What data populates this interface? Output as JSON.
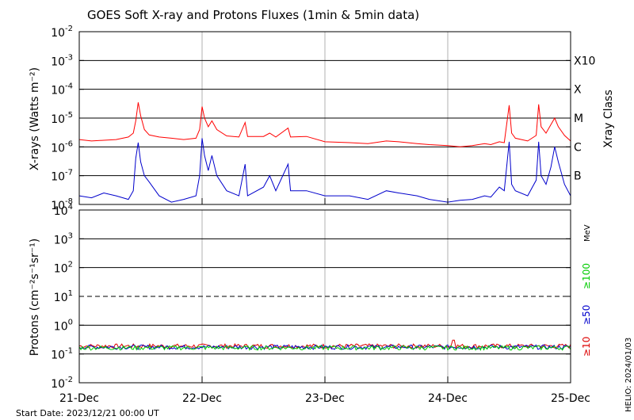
{
  "chart_data": {
    "title": "GOES Soft X-ray and Protons Fluxes   (1min & 5min data)",
    "x_axis": {
      "ticks": [
        "21-Dec",
        "22-Dec",
        "23-Dec",
        "24-Dec",
        "25-Dec"
      ],
      "range_days": [
        0,
        4
      ],
      "start_label": "Start Date: 2023/12/21 00:00 UT"
    },
    "side_label": "HELIO: 2024/01/03",
    "panels": [
      {
        "type": "line",
        "name": "xray",
        "ylabel": "X-rays (Watts m⁻²)",
        "y_scale": "log",
        "ylim": [
          1e-08,
          0.01
        ],
        "y_tick_exponents": [
          -2,
          -3,
          -4,
          -5,
          -6,
          -7,
          -8
        ],
        "right_axis_label": "Xray Class",
        "classes": [
          {
            "label": "X10",
            "flux": 0.001
          },
          {
            "label": "X",
            "flux": 0.0001
          },
          {
            "label": "M",
            "flux": 1e-05
          },
          {
            "label": "C",
            "flux": 1e-06
          },
          {
            "label": "B",
            "flux": 1e-07
          }
        ],
        "series": [
          {
            "color": "#ff0000",
            "points": [
              [
                0,
                1.8e-06
              ],
              [
                0.1,
                1.6e-06
              ],
              [
                0.2,
                1.7e-06
              ],
              [
                0.3,
                1.8e-06
              ],
              [
                0.4,
                2.2e-06
              ],
              [
                0.44,
                3e-06
              ],
              [
                0.46,
                8e-06
              ],
              [
                0.48,
                3.5e-05
              ],
              [
                0.5,
                1.2e-05
              ],
              [
                0.53,
                4e-06
              ],
              [
                0.57,
                2.6e-06
              ],
              [
                0.65,
                2.2e-06
              ],
              [
                0.75,
                2e-06
              ],
              [
                0.85,
                1.8e-06
              ],
              [
                0.95,
                2e-06
              ],
              [
                0.98,
                4e-06
              ],
              [
                1.0,
                2.5e-05
              ],
              [
                1.02,
                1e-05
              ],
              [
                1.05,
                5e-06
              ],
              [
                1.08,
                8e-06
              ],
              [
                1.12,
                4e-06
              ],
              [
                1.2,
                2.4e-06
              ],
              [
                1.3,
                2.2e-06
              ],
              [
                1.35,
                7e-06
              ],
              [
                1.37,
                2.3e-06
              ],
              [
                1.5,
                2.3e-06
              ],
              [
                1.55,
                3e-06
              ],
              [
                1.6,
                2.2e-06
              ],
              [
                1.7,
                4.5e-06
              ],
              [
                1.72,
                2.2e-06
              ],
              [
                1.85,
                2.3e-06
              ],
              [
                2.0,
                1.5e-06
              ],
              [
                2.2,
                1.4e-06
              ],
              [
                2.35,
                1.3e-06
              ],
              [
                2.5,
                1.6e-06
              ],
              [
                2.6,
                1.5e-06
              ],
              [
                2.75,
                1.3e-06
              ],
              [
                2.85,
                1.2e-06
              ],
              [
                3.0,
                1.1e-06
              ],
              [
                3.1,
                1e-06
              ],
              [
                3.2,
                1.1e-06
              ],
              [
                3.3,
                1.3e-06
              ],
              [
                3.35,
                1.2e-06
              ],
              [
                3.42,
                1.5e-06
              ],
              [
                3.46,
                1.4e-06
              ],
              [
                3.5,
                2.8e-05
              ],
              [
                3.52,
                3e-06
              ],
              [
                3.55,
                2e-06
              ],
              [
                3.65,
                1.6e-06
              ],
              [
                3.72,
                2.5e-06
              ],
              [
                3.74,
                3e-05
              ],
              [
                3.76,
                5e-06
              ],
              [
                3.8,
                3e-06
              ],
              [
                3.84,
                6e-06
              ],
              [
                3.87,
                1e-05
              ],
              [
                3.9,
                5e-06
              ],
              [
                3.95,
                2.5e-06
              ],
              [
                4.0,
                1.6e-06
              ]
            ]
          },
          {
            "color": "#0000cc",
            "points": [
              [
                0,
                2e-08
              ],
              [
                0.1,
                1.7e-08
              ],
              [
                0.2,
                2.5e-08
              ],
              [
                0.3,
                2e-08
              ],
              [
                0.4,
                1.5e-08
              ],
              [
                0.44,
                3e-08
              ],
              [
                0.46,
                4e-07
              ],
              [
                0.48,
                1.4e-06
              ],
              [
                0.5,
                3e-07
              ],
              [
                0.53,
                1e-07
              ],
              [
                0.57,
                6e-08
              ],
              [
                0.65,
                2e-08
              ],
              [
                0.75,
                1.2e-08
              ],
              [
                0.85,
                1.5e-08
              ],
              [
                0.95,
                2e-08
              ],
              [
                0.98,
                1e-07
              ],
              [
                1.0,
                2e-06
              ],
              [
                1.02,
                5e-07
              ],
              [
                1.05,
                1.5e-07
              ],
              [
                1.08,
                5e-07
              ],
              [
                1.12,
                1e-07
              ],
              [
                1.2,
                3e-08
              ],
              [
                1.3,
                2e-08
              ],
              [
                1.35,
                2.5e-07
              ],
              [
                1.37,
                2e-08
              ],
              [
                1.5,
                4e-08
              ],
              [
                1.55,
                1e-07
              ],
              [
                1.6,
                3e-08
              ],
              [
                1.7,
                2.5e-07
              ],
              [
                1.72,
                3e-08
              ],
              [
                1.85,
                3e-08
              ],
              [
                2.0,
                2e-08
              ],
              [
                2.2,
                2e-08
              ],
              [
                2.35,
                1.5e-08
              ],
              [
                2.5,
                3e-08
              ],
              [
                2.6,
                2.5e-08
              ],
              [
                2.75,
                2e-08
              ],
              [
                2.85,
                1.5e-08
              ],
              [
                3.0,
                1.2e-08
              ],
              [
                3.1,
                1.4e-08
              ],
              [
                3.2,
                1.5e-08
              ],
              [
                3.3,
                2e-08
              ],
              [
                3.35,
                1.8e-08
              ],
              [
                3.42,
                4e-08
              ],
              [
                3.46,
                3e-08
              ],
              [
                3.5,
                1.5e-06
              ],
              [
                3.52,
                5e-08
              ],
              [
                3.55,
                3e-08
              ],
              [
                3.65,
                2e-08
              ],
              [
                3.72,
                7e-08
              ],
              [
                3.74,
                1.5e-06
              ],
              [
                3.76,
                1e-07
              ],
              [
                3.8,
                5e-08
              ],
              [
                3.84,
                2e-07
              ],
              [
                3.87,
                1e-06
              ],
              [
                3.9,
                3e-07
              ],
              [
                3.95,
                5e-08
              ],
              [
                4.0,
                2e-08
              ]
            ]
          }
        ]
      },
      {
        "type": "line",
        "name": "protons",
        "ylabel": "Protons (cm⁻²s⁻¹sr⁻¹)",
        "y_scale": "log",
        "ylim": [
          0.01,
          10000.0
        ],
        "y_tick_exponents": [
          4,
          3,
          2,
          1,
          0,
          -1,
          -2
        ],
        "threshold": 10,
        "unit_label": "MeV",
        "legend": [
          {
            "label": "≥10",
            "color": "#dd0000"
          },
          {
            "label": "≥50",
            "color": "#0000cc"
          },
          {
            "label": "≥100",
            "color": "#00cc00"
          }
        ],
        "series": [
          {
            "color": "#dd0000",
            "base": 0.19,
            "spike": [
              3.05,
              0.3
            ]
          },
          {
            "color": "#0000cc",
            "base": 0.175,
            "spike": null
          },
          {
            "color": "#00cc00",
            "base": 0.165,
            "spike": null
          }
        ]
      }
    ]
  }
}
